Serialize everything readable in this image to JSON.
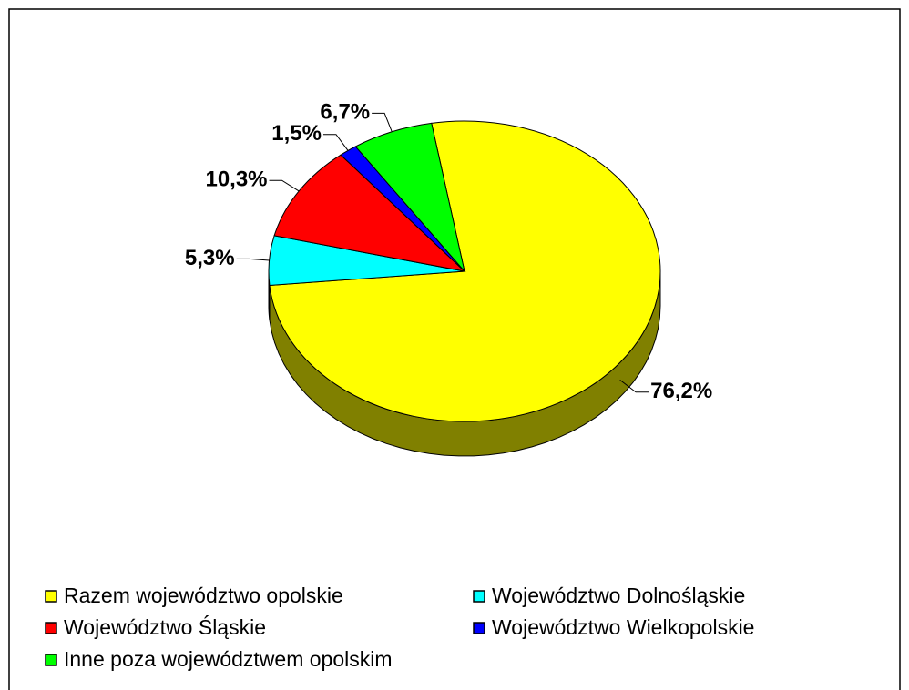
{
  "chart_data": {
    "type": "pie",
    "categories": [
      "Razem województwo opolskie",
      "Województwo Dolnośląskie",
      "Województwo Śląskie",
      "Województwo Wielkopolskie",
      "Inne poza województwem opolskim"
    ],
    "values": [
      76.2,
      5.3,
      10.3,
      1.5,
      6.7
    ],
    "value_labels": [
      "76,2%",
      "5,3%",
      "10,3%",
      "1,5%",
      "6,7%"
    ],
    "colors": [
      "#ffff00",
      "#00ffff",
      "#ff0000",
      "#0000ff",
      "#00ff00"
    ],
    "legend": "bottom"
  }
}
